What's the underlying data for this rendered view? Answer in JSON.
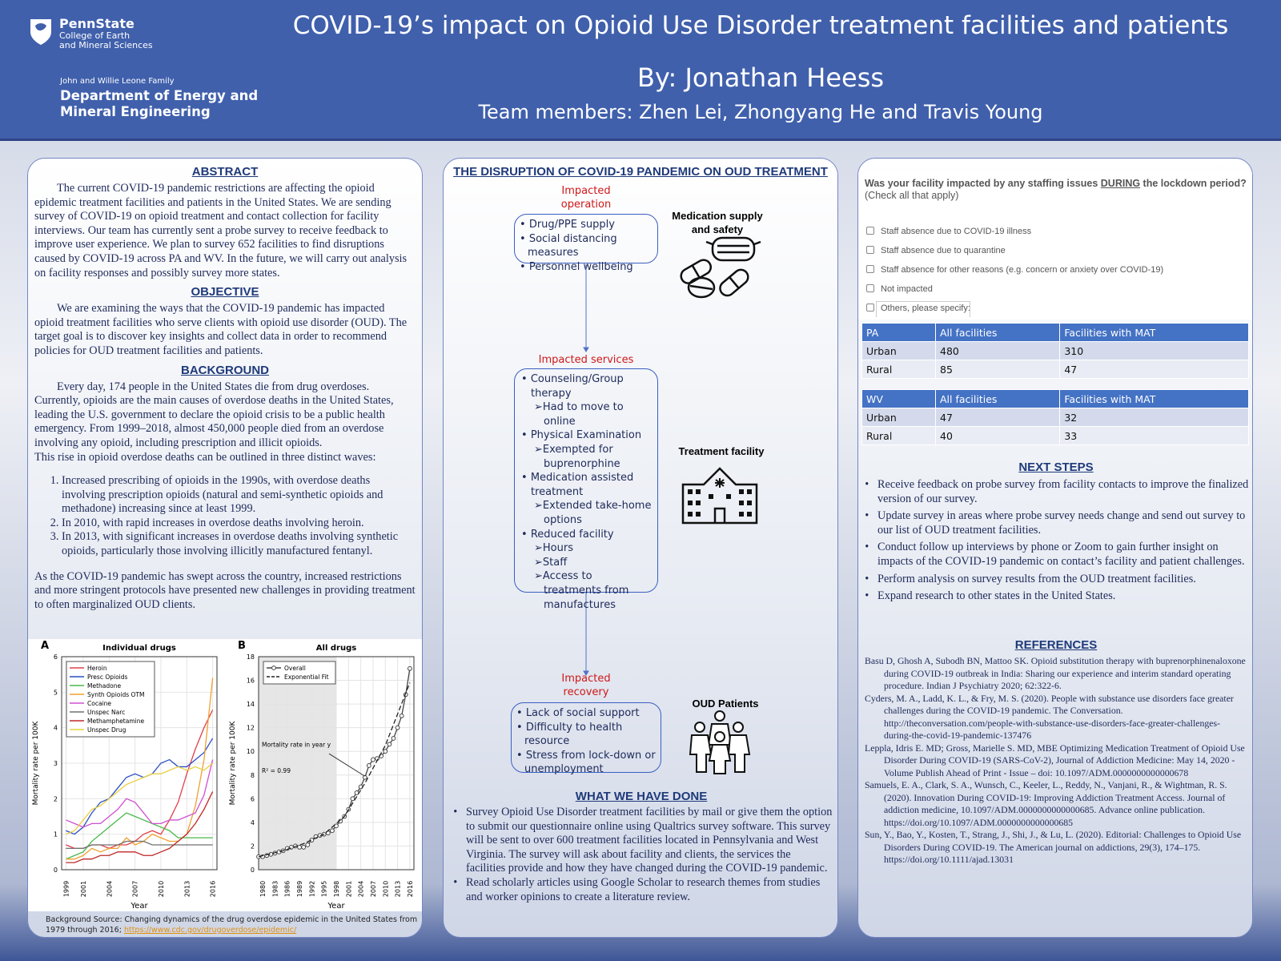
{
  "header": {
    "university": "PennState",
    "college": [
      "College of Earth",
      "and Mineral Sciences"
    ],
    "department": [
      "John and Willie Leone Family",
      "Department of Energy and",
      "Mineral Engineering"
    ],
    "title": "COVID-19’s impact on Opioid Use Disorder treatment facilities and patients",
    "author": "By: Jonathan Heess",
    "team": "Team members: Zhen Lei, Zhongyang He and Travis Young"
  },
  "abstract": {
    "heading": "ABSTRACT",
    "text": "The current COVID-19 pandemic restrictions are affecting the opioid epidemic treatment facilities and patients in the United States. We are sending survey of COVID-19 on opioid treatment and contact collection for facility interviews. Our team has currently sent a probe survey to receive feedback to improve user experience. We plan to survey 652 facilities to find disruptions caused by COVID-19 across PA and WV.  In the future, we will carry out analysis on facility responses and possibly survey more states."
  },
  "objective": {
    "heading": "OBJECTIVE",
    "text": "We are examining the ways that the COVID-19 pandemic has impacted opioid treatment facilities who serve clients with opioid use disorder (OUD). The target goal is to discover key insights and collect data in order to recommend policies for OUD treatment facilities and patients."
  },
  "background": {
    "heading": "BACKGROUND",
    "paragraph": "Every day, 174 people in the United States die from drug overdoses. Currently, opioids are the main causes of overdose deaths in the United States, leading the U.S. government to declare the opioid crisis to be a public health emergency. From 1999–2018, almost 450,000 people died from an overdose involving any opioid, including prescription and illicit opioids.",
    "intro": "This rise in opioid overdose deaths can be outlined in three distinct waves:",
    "waves": [
      "Increased prescribing of opioids in the 1990s, with overdose deaths involving  prescription opioids (natural and semi-synthetic opioids and methadone) increasing since at least 1999.",
      "In 2010, with rapid increases in overdose deaths involving heroin.",
      "In 2013, with significant increases in overdose deaths involving synthetic opioids, particularly those involving illicitly manufactured fentanyl."
    ],
    "closing": "As the COVID-19 pandemic has swept across the country, increased restrictions and more stringent protocols have presented new challenges in providing treatment to often marginalized OUD clients."
  },
  "figures": [
    {
      "label": "A",
      "title": "Individual drugs",
      "xlabel": "Year",
      "ylabel": "Mortality rate per 100K",
      "x": [
        1999,
        2000,
        2001,
        2002,
        2003,
        2004,
        2005,
        2006,
        2007,
        2008,
        2009,
        2010,
        2011,
        2012,
        2013,
        2014,
        2015,
        2016
      ],
      "xlim": [
        1998.5,
        2016.5
      ],
      "xticks": [
        1999,
        2001,
        2004,
        2007,
        2010,
        2013,
        2016
      ],
      "ylim": [
        0,
        6
      ],
      "yticks": [
        0,
        1,
        2,
        3,
        4,
        5,
        6
      ],
      "grid": true,
      "legend": "upper left",
      "series": [
        {
          "name": "Heroin",
          "color": "#e0404a",
          "values": [
            0.7,
            0.6,
            0.6,
            0.7,
            0.7,
            0.6,
            0.7,
            0.7,
            0.8,
            1.0,
            1.1,
            1.0,
            1.4,
            1.9,
            2.7,
            3.4,
            4.0,
            4.5
          ]
        },
        {
          "name": "Presc Opioids",
          "color": "#2a4fc4",
          "values": [
            1.1,
            1.0,
            1.2,
            1.6,
            1.9,
            2.0,
            2.3,
            2.6,
            2.7,
            2.6,
            2.7,
            3.0,
            3.1,
            2.9,
            2.9,
            3.1,
            3.3,
            3.7
          ]
        },
        {
          "name": "Methadone",
          "color": "#48b848",
          "values": [
            0.3,
            0.4,
            0.5,
            0.8,
            1.0,
            1.2,
            1.4,
            1.6,
            1.5,
            1.4,
            1.3,
            1.2,
            1.1,
            0.9,
            0.9,
            0.9,
            0.9,
            0.9
          ]
        },
        {
          "name": "Synth Opioids OTM",
          "color": "#f0a030",
          "values": [
            0.3,
            0.3,
            0.4,
            0.6,
            0.5,
            0.6,
            0.6,
            0.9,
            0.7,
            0.8,
            1.0,
            0.9,
            0.8,
            0.8,
            1.0,
            1.8,
            3.1,
            5.4
          ]
        },
        {
          "name": "Cocaine",
          "color": "#d050d0",
          "values": [
            1.4,
            1.3,
            1.2,
            1.3,
            1.3,
            1.5,
            1.7,
            2.0,
            1.9,
            1.6,
            1.3,
            1.3,
            1.4,
            1.4,
            1.5,
            1.6,
            2.1,
            3.1
          ]
        },
        {
          "name": "Unspec Narc",
          "color": "#707070",
          "values": [
            0.6,
            0.6,
            0.6,
            0.7,
            0.7,
            0.7,
            0.7,
            0.8,
            0.8,
            0.8,
            0.7,
            0.7,
            0.7,
            0.7,
            0.7,
            0.7,
            0.7,
            0.7
          ]
        },
        {
          "name": "Methamphetamine",
          "color": "#c02828",
          "values": [
            0.2,
            0.2,
            0.3,
            0.3,
            0.4,
            0.4,
            0.5,
            0.5,
            0.5,
            0.4,
            0.4,
            0.5,
            0.6,
            0.8,
            1.0,
            1.3,
            1.7,
            2.2
          ]
        },
        {
          "name": "Unspec Drug",
          "color": "#e8d040",
          "values": [
            1.0,
            1.1,
            1.4,
            1.7,
            1.8,
            2.0,
            2.2,
            2.4,
            2.5,
            2.6,
            2.7,
            2.7,
            2.8,
            2.9,
            2.8,
            2.9,
            2.8,
            3.0
          ]
        }
      ]
    },
    {
      "label": "B",
      "title": "All drugs",
      "xlabel": "Year",
      "ylabel": "Mortality rate per 100K",
      "x": [
        1979,
        1980,
        1981,
        1982,
        1983,
        1984,
        1985,
        1986,
        1987,
        1988,
        1989,
        1990,
        1991,
        1992,
        1993,
        1994,
        1995,
        1996,
        1997,
        1998,
        1999,
        2000,
        2001,
        2002,
        2003,
        2004,
        2005,
        2006,
        2007,
        2008,
        2009,
        2010,
        2011,
        2012,
        2013,
        2014,
        2015,
        2016
      ],
      "xlim": [
        1979,
        2017
      ],
      "xticks": [
        1980,
        1983,
        1986,
        1989,
        1992,
        1995,
        1998,
        2001,
        2004,
        2007,
        2010,
        2013,
        2016
      ],
      "ylim": [
        0,
        18
      ],
      "yticks": [
        0,
        2,
        4,
        6,
        8,
        10,
        12,
        14,
        16,
        18
      ],
      "grid": true,
      "legend": "upper left",
      "shaded_xlim": [
        1979,
        1998
      ],
      "annotation": "Mortality rate in year y",
      "r_squared": "R² = 0.99",
      "series": [
        {
          "name": "Overall",
          "color": "#444444",
          "markers": true,
          "values": [
            1.1,
            1.1,
            1.2,
            1.3,
            1.4,
            1.5,
            1.6,
            1.8,
            1.9,
            2.0,
            1.9,
            1.9,
            2.1,
            2.5,
            2.8,
            2.9,
            3.0,
            3.1,
            3.3,
            3.7,
            4.1,
            4.5,
            5.1,
            6.0,
            6.5,
            7.0,
            7.8,
            8.8,
            9.3,
            9.4,
            9.6,
            10.0,
            10.6,
            11.1,
            12.0,
            13.0,
            14.8,
            17.0
          ]
        },
        {
          "name": "Exponential Fit",
          "color": "#222222",
          "dash": true,
          "x": [
            1979,
            1985,
            1990,
            1995,
            2000,
            2005,
            2010,
            2016
          ],
          "values": [
            1.1,
            1.6,
            2.2,
            3.0,
            4.5,
            7.3,
            10.5,
            15.8
          ]
        }
      ]
    }
  ],
  "source": {
    "text": "Background Source: Changing dynamics of the drug overdose epidemic in the United States from 1979 through 2016; ",
    "link": "https://www.cdc.gov/drugoverdose/epidemic/"
  },
  "disruption": {
    "heading": "THE DISRUPTION OF COVID-19 PANDEMIC ON OUD TREATMENT",
    "operation": {
      "title": [
        "Impacted",
        "operation"
      ],
      "items": [
        "Drug/PPE supply",
        "Social distancing measures",
        "Personnel wellbeing"
      ],
      "icon_label": [
        "Medication supply",
        "and safety"
      ]
    },
    "services": {
      "title": "Impacted services",
      "items": [
        {
          "text": "Counseling/Group therapy",
          "subs": [
            "Had to move to online"
          ]
        },
        {
          "text": "Physical Examination",
          "subs": [
            "Exempted for buprenorphine"
          ]
        },
        {
          "text": "Medication assisted treatment",
          "subs": [
            "Extended take-home options"
          ]
        },
        {
          "text": "Reduced facility",
          "subs": [
            "Hours",
            "Staff",
            "Access to treatments from manufactures"
          ]
        }
      ],
      "icon_label": "Treatment facility"
    },
    "recovery": {
      "title": [
        "Impacted",
        "recovery"
      ],
      "items": [
        "Lack of social support",
        "Difficulty to health resource",
        "Stress from lock-down or unemployment"
      ],
      "icon_label": "OUD Patients"
    }
  },
  "done": {
    "heading": "WHAT WE HAVE DONE",
    "items": [
      "Survey Opioid Use Disorder treatment facilities by mail or give them the option to submit our questionnaire online using Qualtrics survey software. This survey will be sent to over 600 treatment facilities located in Pennsylvania and West Virginia. The survey will ask about facility and clients, the services the facilities provide and how they have changed during the COVID-19 pandemic.",
      "Read scholarly articles using Google Scholar to research themes from studies and worker opinions to create a literature review."
    ]
  },
  "survey": {
    "question_pre": "Was your facility impacted by any staffing issues ",
    "question_emph": "DURING",
    "question_post": " the lockdown period?",
    "hint": "(Check all that apply)",
    "options": [
      "Staff absence due to COVID-19 illness",
      "Staff absence due to quarantine",
      "Staff absence for other reasons (e.g. concern or anxiety over COVID-19)",
      "Not impacted",
      "Others, please specify:"
    ]
  },
  "tables": [
    {
      "header": [
        "PA",
        "All facilities",
        "Facilities with MAT"
      ],
      "rows": [
        [
          "Urban",
          480,
          310
        ],
        [
          "Rural",
          85,
          47
        ]
      ]
    },
    {
      "header": [
        "WV",
        "All facilities",
        "Facilities with MAT"
      ],
      "rows": [
        [
          "Urban",
          47,
          32
        ],
        [
          "Rural",
          40,
          33
        ]
      ]
    }
  ],
  "next_steps": {
    "heading": "NEXT STEPS",
    "items": [
      "Receive feedback on probe survey from facility contacts to improve the finalized version of our survey.",
      "Update survey in areas where probe survey needs change and send out survey to our list of OUD treatment facilities.",
      "Conduct follow up interviews by phone or Zoom to gain further insight on impacts of the COVID-19 pandemic on contact’s facility and patient challenges.",
      "Perform analysis on survey results from the OUD treatment facilities.",
      "Expand research to other states in the United States."
    ]
  },
  "references": {
    "heading": "REFERENCES",
    "items": [
      "Basu D, Ghosh A, Subodh BN, Mattoo SK. Opioid substitution therapy with buprenorphinenaloxone during COVID-19 outbreak in India: Sharing our experience and interim standard operating procedure. Indian J Psychiatry 2020; 62:322-6.",
      "Cyders, M. A., Ladd, K. L., & Fry, M. S. (2020). People with substance use disorders face greater challenges during the COVID-19 pandemic. The Conversation. http://theconversation.com/people-with-substance-use-disorders-face-greater-challenges-during-the-covid-19-pandemic-137476",
      "Leppla, Idris E. MD; Gross, Marielle S. MD, MBE Optimizing Medication Treatment of Opioid Use Disorder During COVID-19 (SARS-CoV-2), Journal of Addiction Medicine: May 14, 2020 - Volume Publish Ahead of Print - Issue – doi: 10.1097/ADM.0000000000000678",
      "Samuels, E. A., Clark, S. A., Wunsch, C., Keeler, L., Reddy, N., Vanjani, R., & Wightman, R. S. (2020). Innovation During COVID-19: Improving Addiction Treatment Access. Journal of addiction medicine, 10.1097/ADM.0000000000000685. Advance online publication. https://doi.org/10.1097/ADM.0000000000000685",
      "Sun, Y., Bao, Y., Kosten, T., Strang, J., Shi, J., & Lu, L. (2020). Editorial: Challenges to Opioid Use Disorders During COVID-19. The American journal on addictions, 29(3), 174–175. https://doi.org/10.1111/ajad.13031"
    ]
  }
}
